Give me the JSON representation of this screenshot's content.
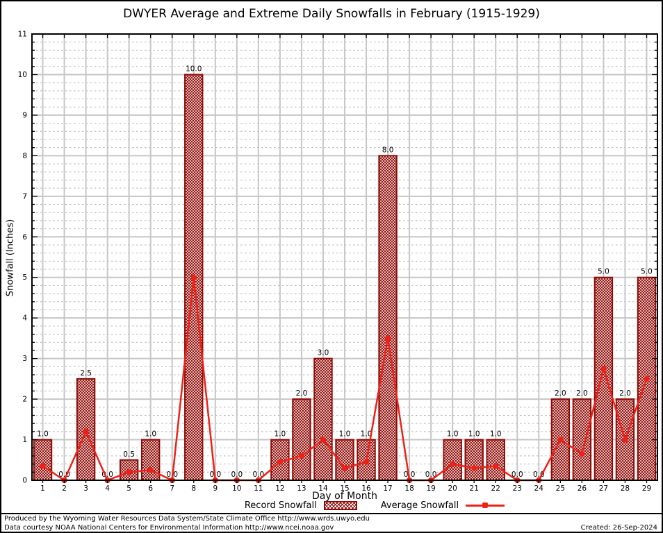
{
  "title": "DWYER Average and Extreme Daily Snowfalls in February (1915-1929)",
  "chart_data": {
    "type": "bar",
    "x": [
      1,
      2,
      3,
      4,
      5,
      6,
      7,
      8,
      9,
      10,
      11,
      12,
      13,
      14,
      15,
      16,
      17,
      18,
      19,
      20,
      21,
      22,
      23,
      24,
      25,
      26,
      27,
      28,
      29
    ],
    "series": [
      {
        "name": "Record Snowfall",
        "type": "bar",
        "values": [
          1.0,
          0.0,
          2.5,
          0.0,
          0.5,
          1.0,
          0.0,
          10.0,
          0.0,
          0.0,
          0.0,
          1.0,
          2.0,
          3.0,
          1.0,
          1.0,
          8.0,
          0.0,
          0.0,
          1.0,
          1.0,
          1.0,
          0.0,
          0.0,
          2.0,
          2.0,
          5.0,
          2.0,
          5.0
        ]
      },
      {
        "name": "Average Snowfall",
        "type": "line",
        "values": [
          0.35,
          0.0,
          1.2,
          0.0,
          0.2,
          0.25,
          0.0,
          5.0,
          0.0,
          0.0,
          0.0,
          0.45,
          0.6,
          1.0,
          0.3,
          0.45,
          3.5,
          0.0,
          0.0,
          0.4,
          0.3,
          0.35,
          0.0,
          0.0,
          1.0,
          0.65,
          2.75,
          1.0,
          2.5
        ]
      }
    ],
    "xlabel": "Day of Month",
    "ylabel": "Snowfall (Inches)",
    "ylim": [
      0,
      11
    ],
    "xlim": [
      0.5,
      29.5
    ],
    "y_major_step": 1,
    "y_minor_step": 0.2,
    "grid": "major solid gray; minor dashed gray horizontal",
    "legend_position": "bottom-center",
    "bar_value_labels_decimals": 1,
    "colors": {
      "bar_fill_hatch": "#8e0b07",
      "bar_border": "#8e0b07",
      "line": "#ee2118",
      "grid_major": "#c6c6c6",
      "grid_minor": "#b4b4b4",
      "axis": "#000000",
      "label_text": "#000000"
    }
  },
  "footer": {
    "line1": "Produced by the Wyoming Water Resources Data System/State Climate Office http://www.wrds.uwyo.edu",
    "line2": "Data courtesy NOAA National Centers for Environmental Information http://www.ncei.noaa.gov",
    "created": "Created: 26-Sep-2024"
  }
}
